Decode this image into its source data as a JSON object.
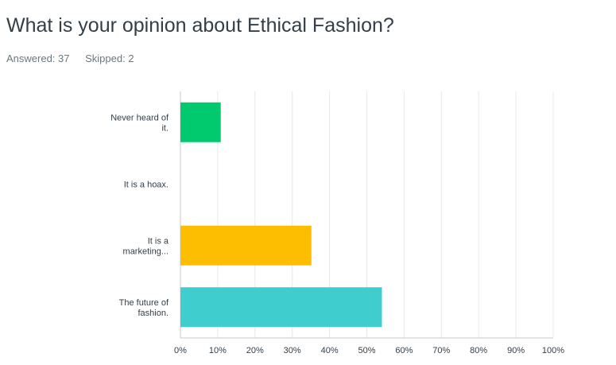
{
  "question": {
    "title": "What is your opinion about Ethical Fashion?"
  },
  "stats": {
    "answered_label": "Answered: 37",
    "skipped_label": "Skipped: 2"
  },
  "colors": {
    "grid": "#e8e8e8",
    "axis": "#c8c8c8",
    "bars": [
      "#00c96e",
      "#f6c54a",
      "#fdbd00",
      "#40cdcd"
    ]
  },
  "chart_data": {
    "type": "bar",
    "orientation": "horizontal",
    "categories": [
      [
        "Never heard of",
        "it."
      ],
      [
        "It is a hoax."
      ],
      [
        "It is a",
        "marketing..."
      ],
      [
        "The future of",
        "fashion."
      ]
    ],
    "values": [
      10.81,
      0,
      35.14,
      54.05
    ],
    "xlim": [
      0,
      100
    ],
    "xticks": [
      "0%",
      "10%",
      "20%",
      "30%",
      "40%",
      "50%",
      "60%",
      "70%",
      "80%",
      "90%",
      "100%"
    ],
    "grid": true,
    "legend": "none"
  }
}
